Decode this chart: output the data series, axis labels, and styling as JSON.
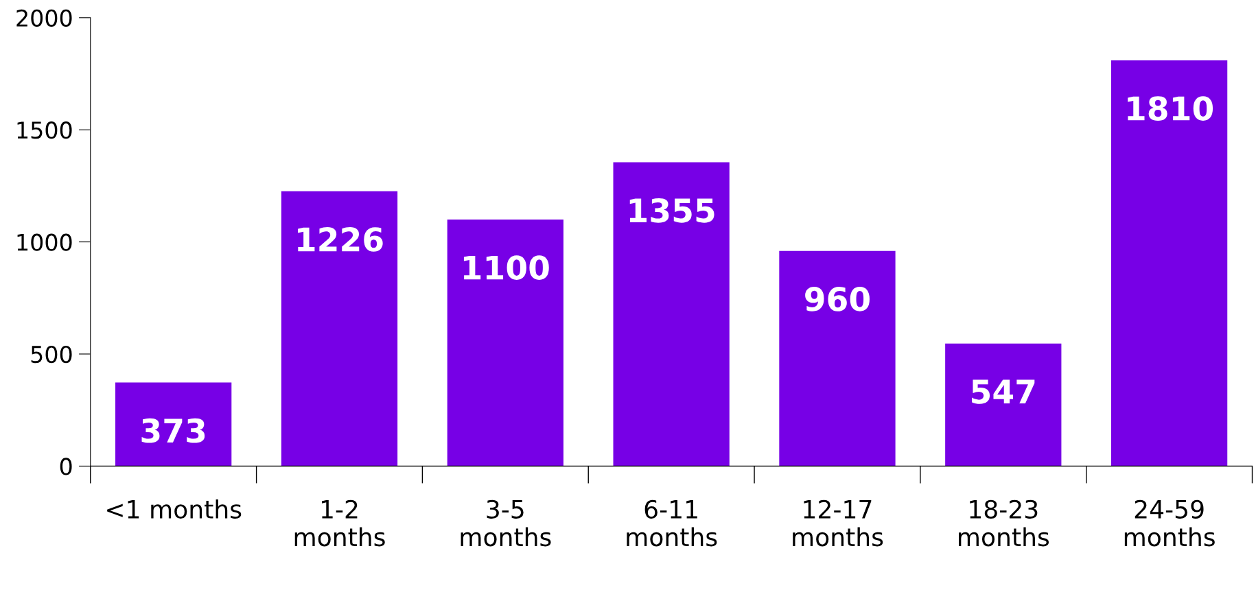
{
  "chart_data": {
    "type": "bar",
    "categories": [
      "<1 months",
      "1-2\nmonths",
      "3-5\nmonths",
      "6-11\nmonths",
      "12-17\nmonths",
      "18-23\nmonths",
      "24-59\nmonths"
    ],
    "values": [
      373,
      1226,
      1100,
      1355,
      960,
      547,
      1810
    ],
    "color": "#7700e6",
    "ylim": [
      0,
      2000
    ],
    "yticks": [
      0,
      500,
      1000,
      1500,
      2000
    ],
    "data_labels": true,
    "grid": false,
    "legend": false
  }
}
